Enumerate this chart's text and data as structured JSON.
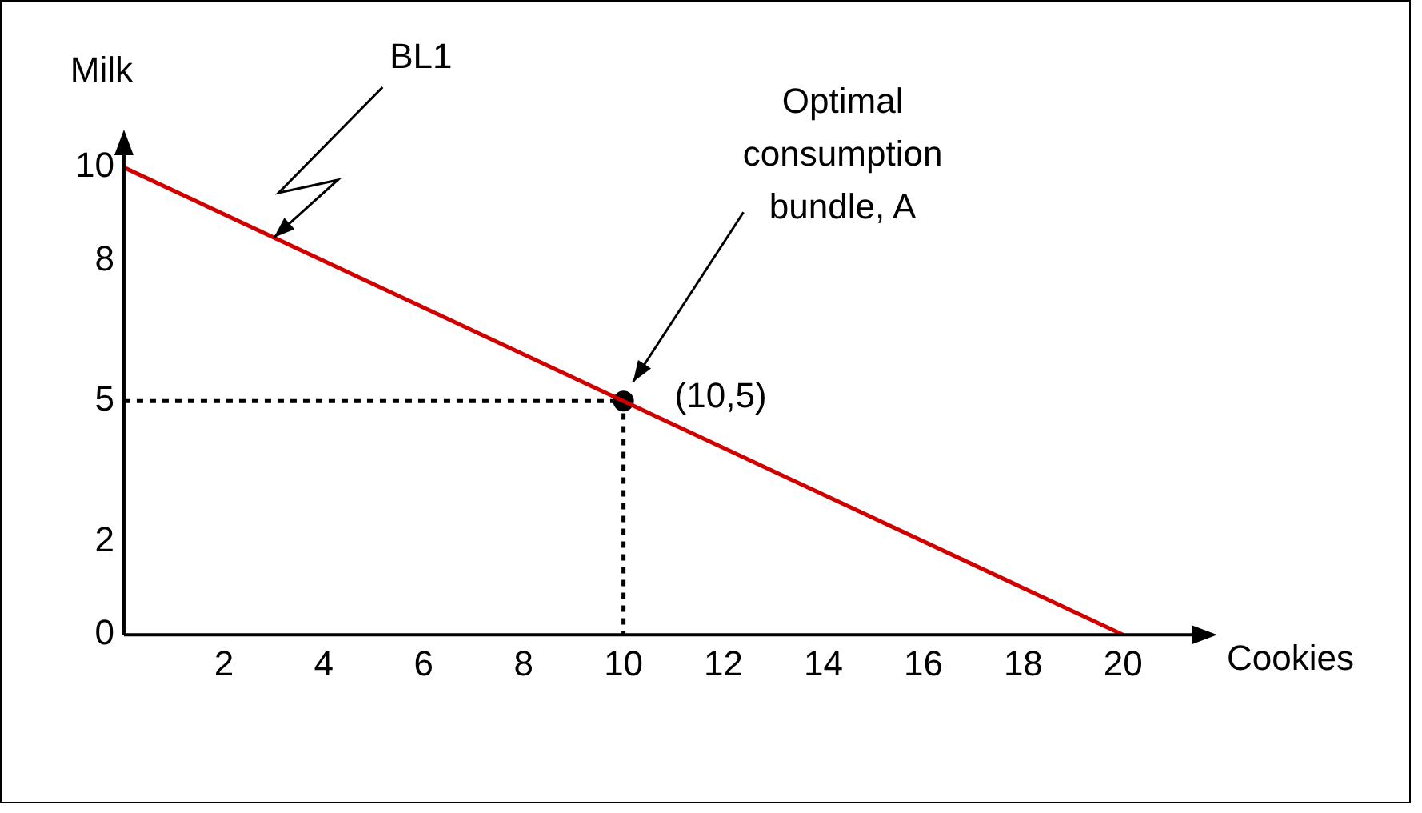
{
  "chart_data": {
    "type": "line",
    "xlabel": "Cookies",
    "ylabel": "Milk",
    "series": [
      {
        "color": "#d00000",
        "x": [
          0,
          20
        ],
        "values": [
          10,
          0
        ],
        "line_style": "solid"
      },
      {
        "color": "#000000",
        "x": [
          0,
          10,
          10
        ],
        "values": [
          5,
          5,
          0
        ],
        "line_style": "dotted"
      },
      {
        "type": "scatter",
        "color": "#000000",
        "x": [
          10
        ],
        "values": [
          5
        ],
        "marker": "circle"
      }
    ],
    "xlim": [
      0,
      21.5
    ],
    "ylim": [
      0,
      10.4
    ],
    "xticks": [
      2,
      4,
      6,
      8,
      10,
      12,
      14,
      16,
      18,
      20
    ],
    "yticks": [
      0,
      2,
      5,
      8,
      10
    ],
    "annotations": [
      {
        "text": "BL1",
        "x": 3,
        "y": 8.5
      },
      "Optimal consumption bundle, A",
      "(10,5)"
    ],
    "grid": false,
    "legend": false
  }
}
